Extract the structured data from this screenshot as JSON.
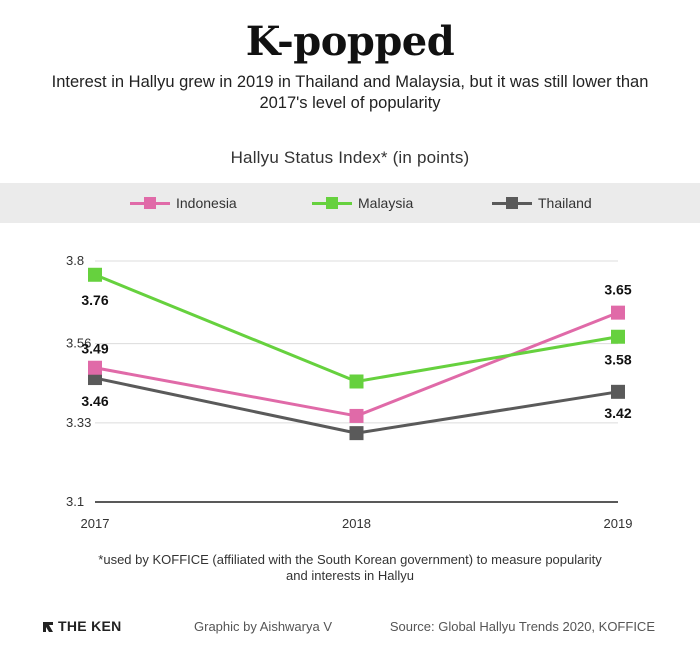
{
  "title": "K-popped",
  "subtitle": "Interest in Hallyu grew in 2019 in Thailand and Malaysia, but it was still lower than 2017's level of popularity",
  "footnote": "*used by KOFFICE (affiliated with the South Korean government) to measure popularity and interests in Hallyu",
  "footer": {
    "logo": "THE KEN",
    "credit": "Graphic by Aishwarya V",
    "source": "Source: Global Hallyu Trends 2020, KOFFICE"
  },
  "chart_data": {
    "type": "line",
    "title": "Hallyu Status Index* (in points)",
    "xlabel": "",
    "ylabel": "",
    "x": [
      "2017",
      "2018",
      "2019"
    ],
    "ylim": [
      3.1,
      3.8
    ],
    "yticks": [
      "3.1",
      "3.33",
      "3.56",
      "3.8"
    ],
    "grid": true,
    "legend_position": "top",
    "series": [
      {
        "name": "Indonesia",
        "color": "#e06aa8",
        "values": [
          3.49,
          3.35,
          3.65
        ]
      },
      {
        "name": "Malaysia",
        "color": "#66d13e",
        "values": [
          3.76,
          3.45,
          3.58
        ]
      },
      {
        "name": "Thailand",
        "color": "#5a5a5a",
        "values": [
          3.46,
          3.3,
          3.42
        ]
      }
    ],
    "data_labels": [
      {
        "series": "Malaysia",
        "x": "2017",
        "text": "3.76"
      },
      {
        "series": "Indonesia",
        "x": "2017",
        "text": "3.49"
      },
      {
        "series": "Thailand",
        "x": "2017",
        "text": "3.46"
      },
      {
        "series": "Indonesia",
        "x": "2019",
        "text": "3.65"
      },
      {
        "series": "Malaysia",
        "x": "2019",
        "text": "3.58"
      },
      {
        "series": "Thailand",
        "x": "2019",
        "text": "3.42"
      }
    ]
  }
}
